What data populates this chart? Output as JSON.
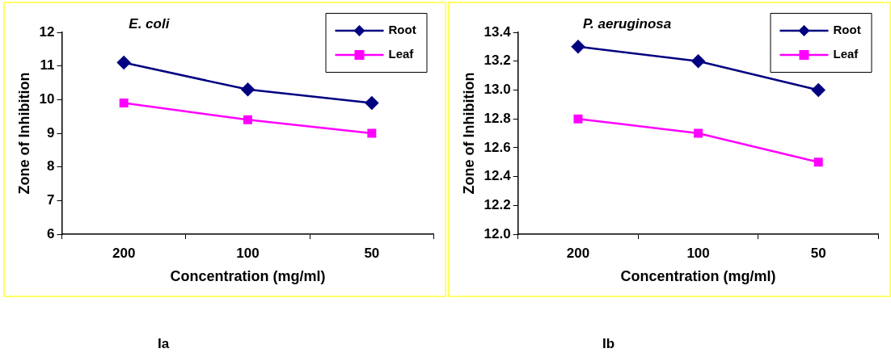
{
  "chart_data": [
    {
      "type": "line",
      "title": "E. coli",
      "xlabel": "Concentration (mg/ml)",
      "ylabel": "Zone of Inhibition",
      "categories": [
        "200",
        "100",
        "50"
      ],
      "series": [
        {
          "name": "Root",
          "color": "#000080",
          "marker": "diamond",
          "values": [
            11.1,
            10.3,
            9.9
          ]
        },
        {
          "name": "Leaf",
          "color": "#ff00ff",
          "marker": "square",
          "values": [
            9.9,
            9.4,
            9.0
          ]
        }
      ],
      "ylim": [
        6,
        12
      ],
      "yticks": [
        6,
        7,
        8,
        9,
        10,
        11,
        12
      ],
      "legend": "top right",
      "annotations": [
        "Ia"
      ]
    },
    {
      "type": "line",
      "title": "P. aeruginosa",
      "xlabel": "Concentration (mg/ml)",
      "ylabel": "Zone of Inhibition",
      "categories": [
        "200",
        "100",
        "50"
      ],
      "series": [
        {
          "name": "Root",
          "color": "#000080",
          "marker": "diamond",
          "values": [
            13.3,
            13.2,
            13.0
          ]
        },
        {
          "name": "Leaf",
          "color": "#ff00ff",
          "marker": "square",
          "values": [
            12.8,
            12.7,
            12.5
          ]
        }
      ],
      "ylim": [
        12,
        13.4
      ],
      "yticks": [
        {
          "value": 12,
          "label": "12.0"
        },
        12.2,
        12.4,
        12.6,
        12.8,
        {
          "value": 13,
          "label": "13.0"
        },
        13.2,
        13.4
      ],
      "legend": "top right",
      "annotations": [
        "Ib"
      ]
    }
  ]
}
